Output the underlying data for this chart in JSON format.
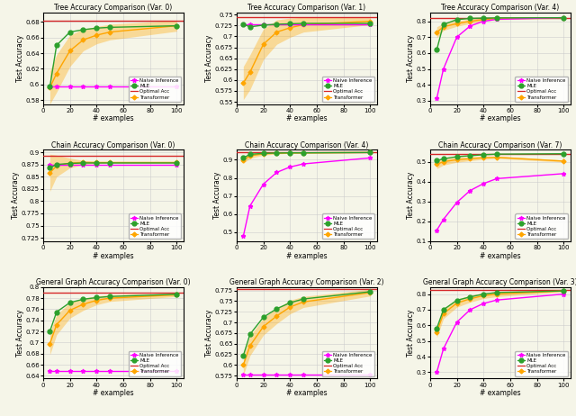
{
  "subplots": [
    {
      "title": "Tree Accuracy Comparison (Var. 0)",
      "x": [
        5,
        10,
        20,
        30,
        40,
        50,
        100
      ],
      "naive": [
        0.597,
        0.597,
        0.597,
        0.597,
        0.597,
        0.597,
        0.597
      ],
      "mle": [
        0.597,
        0.65,
        0.667,
        0.67,
        0.672,
        0.673,
        0.675
      ],
      "optimal": 0.682,
      "transformer_mean": [
        0.596,
        0.614,
        0.643,
        0.657,
        0.663,
        0.667,
        0.675
      ],
      "transformer_lo": [
        0.575,
        0.59,
        0.623,
        0.643,
        0.652,
        0.657,
        0.668
      ],
      "transformer_hi": [
        0.617,
        0.638,
        0.663,
        0.671,
        0.674,
        0.677,
        0.682
      ],
      "ylim": [
        0.575,
        0.692
      ],
      "yticks": [
        0.58,
        0.6,
        0.62,
        0.64,
        0.66,
        0.68
      ]
    },
    {
      "title": "Tree Accuracy Comparison (Var. 1)",
      "x": [
        5,
        10,
        20,
        30,
        40,
        50,
        100
      ],
      "naive": [
        0.728,
        0.728,
        0.728,
        0.728,
        0.728,
        0.728,
        0.728
      ],
      "mle": [
        0.728,
        0.722,
        0.726,
        0.728,
        0.729,
        0.73,
        0.73
      ],
      "optimal": 0.745,
      "transformer_mean": [
        0.593,
        0.618,
        0.682,
        0.71,
        0.72,
        0.727,
        0.735
      ],
      "transformer_lo": [
        0.555,
        0.578,
        0.647,
        0.682,
        0.698,
        0.71,
        0.727
      ],
      "transformer_hi": [
        0.631,
        0.658,
        0.717,
        0.738,
        0.742,
        0.744,
        0.743
      ],
      "ylim": [
        0.545,
        0.755
      ],
      "yticks": [
        0.55,
        0.575,
        0.6,
        0.625,
        0.65,
        0.675,
        0.7,
        0.725,
        0.75
      ]
    },
    {
      "title": "Tree Accuracy Comparison (Var. 4)",
      "x": [
        5,
        10,
        20,
        30,
        40,
        50,
        100
      ],
      "naive": [
        0.315,
        0.5,
        0.7,
        0.77,
        0.8,
        0.812,
        0.823
      ],
      "mle": [
        0.62,
        0.78,
        0.81,
        0.818,
        0.82,
        0.821,
        0.822
      ],
      "optimal": 0.822,
      "transformer_mean": [
        0.73,
        0.765,
        0.785,
        0.8,
        0.81,
        0.818,
        0.822
      ],
      "transformer_lo": [
        0.695,
        0.742,
        0.768,
        0.786,
        0.799,
        0.81,
        0.819
      ],
      "transformer_hi": [
        0.765,
        0.788,
        0.802,
        0.814,
        0.821,
        0.826,
        0.825
      ],
      "ylim": [
        0.28,
        0.855
      ],
      "yticks": [
        0.3,
        0.4,
        0.5,
        0.6,
        0.7,
        0.8
      ]
    },
    {
      "title": "Chain Accuracy Comparison (Var. 0)",
      "x": [
        5,
        10,
        20,
        30,
        40,
        50,
        100
      ],
      "naive": [
        0.875,
        0.875,
        0.875,
        0.875,
        0.875,
        0.875,
        0.875
      ],
      "mle": [
        0.868,
        0.875,
        0.877,
        0.878,
        0.878,
        0.878,
        0.878
      ],
      "optimal": 0.893,
      "transformer_mean": [
        0.858,
        0.872,
        0.878,
        0.879,
        0.879,
        0.879,
        0.879
      ],
      "transformer_lo": [
        0.82,
        0.85,
        0.868,
        0.875,
        0.877,
        0.878,
        0.878
      ],
      "transformer_hi": [
        0.896,
        0.894,
        0.888,
        0.883,
        0.881,
        0.88,
        0.88
      ],
      "ylim": [
        0.718,
        0.905
      ],
      "yticks": [
        0.725,
        0.75,
        0.775,
        0.8,
        0.825,
        0.85,
        0.875,
        0.9
      ]
    },
    {
      "title": "Chain Accuracy Comparison (Var. 4)",
      "x": [
        5,
        10,
        20,
        30,
        40,
        50,
        100
      ],
      "naive": [
        0.478,
        0.645,
        0.765,
        0.83,
        0.86,
        0.877,
        0.91
      ],
      "mle": [
        0.91,
        0.93,
        0.935,
        0.937,
        0.938,
        0.938,
        0.94
      ],
      "optimal": 0.94,
      "transformer_mean": [
        0.895,
        0.922,
        0.932,
        0.936,
        0.937,
        0.938,
        0.94
      ],
      "transformer_lo": [
        0.88,
        0.908,
        0.925,
        0.932,
        0.935,
        0.936,
        0.939
      ],
      "transformer_hi": [
        0.91,
        0.936,
        0.939,
        0.94,
        0.939,
        0.94,
        0.941
      ],
      "ylim": [
        0.45,
        0.955
      ],
      "yticks": [
        0.5,
        0.6,
        0.7,
        0.8,
        0.9
      ]
    },
    {
      "title": "Chain Accuracy Comparison (Var. 7)",
      "x": [
        5,
        10,
        20,
        30,
        40,
        50,
        100
      ],
      "naive": [
        0.155,
        0.21,
        0.295,
        0.355,
        0.39,
        0.415,
        0.44
      ],
      "mle": [
        0.505,
        0.515,
        0.525,
        0.53,
        0.535,
        0.538,
        0.54
      ],
      "optimal": 0.54,
      "transformer_mean": [
        0.487,
        0.5,
        0.51,
        0.515,
        0.52,
        0.522,
        0.503
      ],
      "transformer_lo": [
        0.465,
        0.483,
        0.497,
        0.505,
        0.512,
        0.516,
        0.498
      ],
      "transformer_hi": [
        0.509,
        0.517,
        0.523,
        0.525,
        0.528,
        0.528,
        0.508
      ],
      "ylim": [
        0.1,
        0.56
      ],
      "yticks": [
        0.1,
        0.2,
        0.3,
        0.4,
        0.5
      ]
    },
    {
      "title": "General Graph Accuracy Comparison (Var. 0)",
      "x": [
        5,
        10,
        20,
        30,
        40,
        50,
        100
      ],
      "naive": [
        0.648,
        0.648,
        0.648,
        0.648,
        0.648,
        0.648,
        0.648
      ],
      "mle": [
        0.72,
        0.755,
        0.772,
        0.778,
        0.781,
        0.783,
        0.787
      ],
      "optimal": 0.79,
      "transformer_mean": [
        0.698,
        0.732,
        0.758,
        0.769,
        0.776,
        0.78,
        0.786
      ],
      "transformer_lo": [
        0.678,
        0.714,
        0.744,
        0.758,
        0.768,
        0.774,
        0.783
      ],
      "transformer_hi": [
        0.718,
        0.75,
        0.772,
        0.78,
        0.784,
        0.786,
        0.789
      ],
      "ylim": [
        0.635,
        0.8
      ],
      "yticks": [
        0.64,
        0.66,
        0.68,
        0.7,
        0.72,
        0.74,
        0.76,
        0.78,
        0.8
      ]
    },
    {
      "title": "General Graph Accuracy Comparison (Var. 2)",
      "x": [
        5,
        10,
        20,
        30,
        40,
        50,
        100
      ],
      "naive": [
        0.578,
        0.578,
        0.578,
        0.578,
        0.578,
        0.578,
        0.578
      ],
      "mle": [
        0.622,
        0.672,
        0.712,
        0.732,
        0.746,
        0.755,
        0.772
      ],
      "optimal": 0.778,
      "transformer_mean": [
        0.6,
        0.645,
        0.69,
        0.715,
        0.736,
        0.748,
        0.77
      ],
      "transformer_lo": [
        0.576,
        0.622,
        0.67,
        0.697,
        0.72,
        0.735,
        0.762
      ],
      "transformer_hi": [
        0.624,
        0.668,
        0.71,
        0.733,
        0.752,
        0.761,
        0.778
      ],
      "ylim": [
        0.568,
        0.783
      ],
      "yticks": [
        0.575,
        0.6,
        0.625,
        0.65,
        0.675,
        0.7,
        0.725,
        0.75,
        0.775
      ]
    },
    {
      "title": "General Graph Accuracy Comparison (Var. 3)",
      "x": [
        5,
        10,
        20,
        30,
        40,
        50,
        100
      ],
      "naive": [
        0.3,
        0.45,
        0.62,
        0.7,
        0.74,
        0.762,
        0.8
      ],
      "mle": [
        0.58,
        0.7,
        0.76,
        0.782,
        0.8,
        0.81,
        0.82
      ],
      "optimal": 0.825,
      "transformer_mean": [
        0.555,
        0.675,
        0.742,
        0.77,
        0.79,
        0.8,
        0.82
      ],
      "transformer_lo": [
        0.52,
        0.643,
        0.716,
        0.748,
        0.772,
        0.784,
        0.814
      ],
      "transformer_hi": [
        0.59,
        0.707,
        0.768,
        0.792,
        0.808,
        0.816,
        0.826
      ],
      "ylim": [
        0.26,
        0.845
      ],
      "yticks": [
        0.3,
        0.4,
        0.5,
        0.6,
        0.7,
        0.8
      ]
    }
  ],
  "colors": {
    "naive": "#FF00FF",
    "mle": "#2CA02C",
    "optimal": "#D62728",
    "transformer": "#FFA500"
  },
  "bg_color": "#f5f5e8",
  "xlabel": "# examples",
  "ylabel": "Test Accuracy",
  "legend_labels": [
    "Naive Inference",
    "MLE",
    "Optimal Acc",
    "Transformer"
  ]
}
